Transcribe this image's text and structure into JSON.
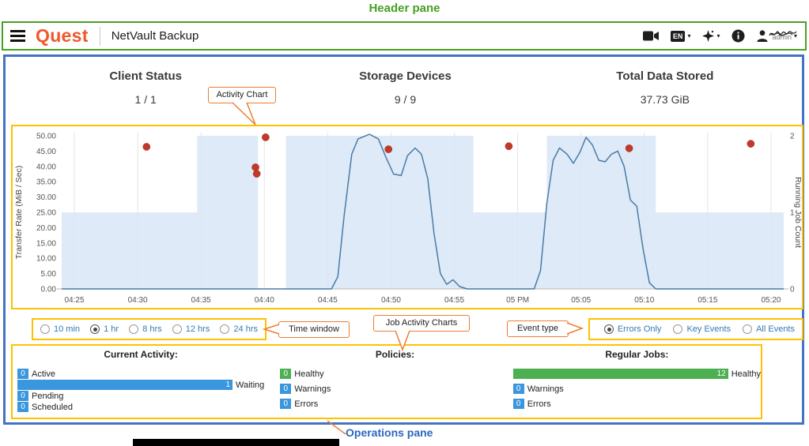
{
  "colors": {
    "annotation_green": "#46a024",
    "pane_blue": "#4472c4",
    "highlight_yellow": "#ffc000",
    "callout_orange": "#ed7d31",
    "brand_orange": "#f0582b",
    "link_blue": "#337ab7",
    "bar_blue": "#3a96dd",
    "bar_green": "#4caf50",
    "event_red": "#c0392b",
    "ops_label_blue": "#2b66c2"
  },
  "annotations": {
    "header_pane": "Header pane",
    "activity_chart": "Activity Chart",
    "time_window": "Time window",
    "job_activity_charts": "Job Activity Charts",
    "event_type": "Event type",
    "operations_pane": "Operations pane"
  },
  "header": {
    "brand": "Quest",
    "app_title": "NetVault Backup",
    "language_badge": "EN",
    "user_name": "admin",
    "icons": [
      "menu-icon",
      "video-tutorial-icon",
      "language-badge",
      "chevron-down-icon",
      "sparkle-icon",
      "info-icon",
      "user-icon"
    ]
  },
  "summary": [
    {
      "label": "Client Status",
      "value": "1 / 1"
    },
    {
      "label": "Storage Devices",
      "value": "9 / 9"
    },
    {
      "label": "Total Data Stored",
      "value": "37.73 GiB"
    }
  ],
  "chart_data": {
    "type": "line",
    "title": "Activity Chart",
    "x_axis": {
      "range_minutes_after_4pm": [
        24,
        81
      ],
      "ticks": [
        {
          "label": "04:25",
          "t": 25
        },
        {
          "label": "04:30",
          "t": 30
        },
        {
          "label": "04:35",
          "t": 35
        },
        {
          "label": "04:40",
          "t": 40
        },
        {
          "label": "04:45",
          "t": 45
        },
        {
          "label": "04:50",
          "t": 50
        },
        {
          "label": "04:55",
          "t": 55
        },
        {
          "label": "05 PM",
          "t": 60
        },
        {
          "label": "05:05",
          "t": 65
        },
        {
          "label": "05:10",
          "t": 70
        },
        {
          "label": "05:15",
          "t": 75
        },
        {
          "label": "05:20",
          "t": 80
        }
      ]
    },
    "left_axis": {
      "label": "Transfer Rate (MiB / Sec)",
      "range": [
        0,
        50
      ],
      "tick_step": 5,
      "tick_labels": [
        "50.00",
        "45.00",
        "40.00",
        "35.00",
        "30.00",
        "25.00",
        "20.00",
        "15.00",
        "10.00",
        "5.00",
        "0.00"
      ]
    },
    "right_axis": {
      "label": "Running Job Count",
      "range": [
        0,
        2
      ],
      "tick_labels": [
        "2",
        "1",
        "0"
      ]
    },
    "series": [
      {
        "name": "Transfer Rate (MiB / Sec)",
        "type": "line",
        "color": "#4a7ba6",
        "points": [
          [
            24,
            0
          ],
          [
            45.3,
            0
          ],
          [
            45.8,
            4
          ],
          [
            46.3,
            24
          ],
          [
            46.9,
            44
          ],
          [
            47.4,
            49
          ],
          [
            48.3,
            50.5
          ],
          [
            49,
            49
          ],
          [
            49.6,
            43
          ],
          [
            50.2,
            37.5
          ],
          [
            50.8,
            37
          ],
          [
            51.3,
            43.5
          ],
          [
            51.9,
            46
          ],
          [
            52.4,
            44
          ],
          [
            52.9,
            36
          ],
          [
            53.4,
            18
          ],
          [
            53.9,
            5
          ],
          [
            54.4,
            1.5
          ],
          [
            54.9,
            3
          ],
          [
            55.4,
            0.8
          ],
          [
            56,
            0
          ],
          [
            61.3,
            0
          ],
          [
            61.8,
            6
          ],
          [
            62.3,
            28
          ],
          [
            62.8,
            42
          ],
          [
            63.3,
            46
          ],
          [
            63.9,
            44
          ],
          [
            64.4,
            41
          ],
          [
            64.9,
            44.5
          ],
          [
            65.4,
            49.5
          ],
          [
            65.9,
            47
          ],
          [
            66.4,
            42
          ],
          [
            66.9,
            41.5
          ],
          [
            67.4,
            44
          ],
          [
            67.9,
            45
          ],
          [
            68.4,
            40
          ],
          [
            68.9,
            29
          ],
          [
            69.4,
            27
          ],
          [
            69.9,
            13
          ],
          [
            70.4,
            2
          ],
          [
            70.9,
            0
          ],
          [
            81,
            0
          ]
        ]
      },
      {
        "name": "Running Job Count",
        "type": "area-step",
        "color": "#d8e6f6",
        "segments": [
          [
            24,
            34.7,
            1
          ],
          [
            34.7,
            39.5,
            2
          ],
          [
            39.5,
            41.7,
            0
          ],
          [
            41.7,
            56.5,
            2
          ],
          [
            56.5,
            62.3,
            1
          ],
          [
            62.3,
            70.9,
            2
          ],
          [
            70.9,
            81,
            1
          ]
        ]
      },
      {
        "name": "Error Events",
        "type": "scatter",
        "color": "#c0392b",
        "points": [
          [
            30.7,
            46.4
          ],
          [
            40.1,
            49.5
          ],
          [
            39.3,
            39.7
          ],
          [
            39.4,
            37.6
          ],
          [
            49.8,
            45.6
          ],
          [
            59.3,
            46.6
          ],
          [
            68.8,
            45.9
          ],
          [
            78.4,
            47.4
          ]
        ]
      }
    ]
  },
  "time_window": {
    "options": [
      {
        "label": "10 min",
        "selected": false
      },
      {
        "label": "1 hr",
        "selected": true
      },
      {
        "label": "8 hrs",
        "selected": false
      },
      {
        "label": "12 hrs",
        "selected": false
      },
      {
        "label": "24 hrs",
        "selected": false
      }
    ]
  },
  "event_type": {
    "options": [
      {
        "label": "Errors Only",
        "selected": true
      },
      {
        "label": "Key Events",
        "selected": false
      },
      {
        "label": "All Events",
        "selected": false
      }
    ]
  },
  "operations": {
    "groups": [
      {
        "title": "Current Activity:",
        "rows": [
          {
            "value": 0,
            "label": "Active",
            "color": "#3a96dd",
            "bar": false
          },
          {
            "value": 1,
            "label": "Waiting",
            "color": "#3a96dd",
            "bar": true
          },
          {
            "value": 0,
            "label": "Pending",
            "color": "#3a96dd",
            "bar": false
          },
          {
            "value": 0,
            "label": "Scheduled",
            "color": "#3a96dd",
            "bar": false
          }
        ]
      },
      {
        "title": "Policies:",
        "rows": [
          {
            "value": 0,
            "label": "Healthy",
            "color": "#4caf50",
            "bar": false
          },
          {
            "value": 0,
            "label": "Warnings",
            "color": "#3a96dd",
            "bar": false
          },
          {
            "value": 0,
            "label": "Errors",
            "color": "#3a96dd",
            "bar": false
          }
        ]
      },
      {
        "title": "Regular Jobs:",
        "rows": [
          {
            "value": 12,
            "label": "Healthy",
            "color": "#4caf50",
            "bar": true
          },
          {
            "value": 0,
            "label": "Warnings",
            "color": "#3a96dd",
            "bar": false
          },
          {
            "value": 0,
            "label": "Errors",
            "color": "#3a96dd",
            "bar": false
          }
        ]
      }
    ]
  }
}
